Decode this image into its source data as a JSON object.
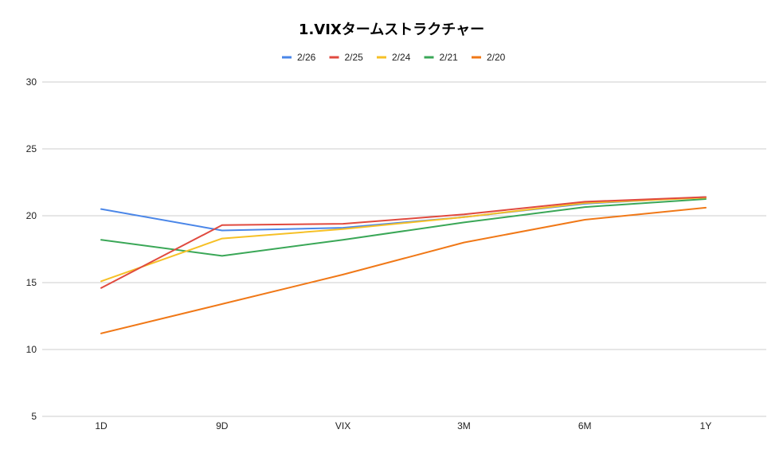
{
  "chart_data": {
    "type": "line",
    "title": "1.VIXタームストラクチャー",
    "xlabel": "",
    "ylabel": "",
    "categories": [
      "1D",
      "9D",
      "VIX",
      "3M",
      "6M",
      "1Y"
    ],
    "ylim": [
      5,
      30
    ],
    "yticks": [
      5,
      10,
      15,
      20,
      25,
      30
    ],
    "grid": true,
    "legend_position": "top",
    "series": [
      {
        "name": "2/26",
        "color": "#4a86e8",
        "values": [
          20.5,
          18.9,
          19.1,
          19.9,
          20.9,
          21.4
        ]
      },
      {
        "name": "2/25",
        "color": "#e04a3f",
        "values": [
          14.6,
          19.3,
          19.4,
          20.1,
          21.05,
          21.4
        ]
      },
      {
        "name": "2/24",
        "color": "#f6c026",
        "values": [
          15.1,
          18.3,
          19.0,
          19.9,
          20.95,
          21.35
        ]
      },
      {
        "name": "2/21",
        "color": "#3aa757",
        "values": [
          18.2,
          17.0,
          18.2,
          19.5,
          20.65,
          21.25
        ]
      },
      {
        "name": "2/20",
        "color": "#f07817",
        "values": [
          11.2,
          13.4,
          15.6,
          18.0,
          19.7,
          20.6
        ]
      }
    ]
  }
}
